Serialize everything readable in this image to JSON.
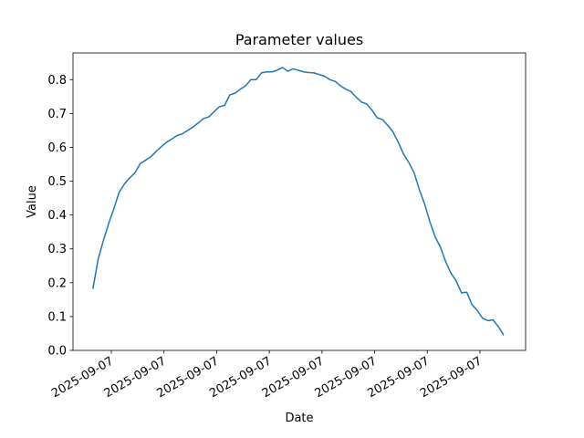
{
  "chart_data": {
    "type": "line",
    "title": "Parameter values",
    "x_label": "Date",
    "y_label": "Value",
    "x": [
      6.5,
      7.5,
      8.5,
      9.5,
      10.5,
      11.5,
      12.5,
      13.5,
      14.5,
      15.5,
      16.5,
      17.5,
      18.5,
      19.5,
      20.5,
      21.5,
      22.5,
      23.5,
      24.5,
      25.5,
      26.5,
      27.5,
      28.5,
      29.5,
      30.5,
      31.5,
      32.5,
      33.5,
      34.5,
      35.5,
      36.5,
      37.5,
      38.5,
      39.5,
      40.5,
      41.5,
      42.5,
      43.5,
      44.5,
      45.5,
      46.5,
      47.5,
      48.5,
      49.5,
      50.5,
      51.5,
      52.5,
      53.5,
      54.5,
      55.5,
      56.5,
      57.5,
      58.5,
      59.5,
      60.5,
      61.5,
      62.5,
      63.5,
      64.5,
      65.5,
      66.5,
      67.5,
      68.5,
      69.5,
      70.5,
      71.5,
      72.5,
      73.5,
      74.5,
      75.5,
      76.5,
      77.5,
      78.5,
      79.5,
      80.5,
      81.5,
      82.5,
      83.5,
      84.5
    ],
    "series": [
      {
        "color": "#1f77b4",
        "values": [
          0.182,
          0.27,
          0.325,
          0.375,
          0.42,
          0.468,
          0.492,
          0.51,
          0.525,
          0.552,
          0.562,
          0.572,
          0.588,
          0.602,
          0.615,
          0.625,
          0.635,
          0.64,
          0.65,
          0.66,
          0.672,
          0.685,
          0.69,
          0.705,
          0.72,
          0.724,
          0.755,
          0.76,
          0.772,
          0.782,
          0.8,
          0.8,
          0.82,
          0.823,
          0.823,
          0.828,
          0.836,
          0.825,
          0.832,
          0.828,
          0.823,
          0.821,
          0.82,
          0.815,
          0.81,
          0.8,
          0.795,
          0.782,
          0.772,
          0.765,
          0.748,
          0.734,
          0.728,
          0.71,
          0.687,
          0.682,
          0.665,
          0.645,
          0.615,
          0.58,
          0.555,
          0.525,
          0.475,
          0.432,
          0.38,
          0.335,
          0.305,
          0.262,
          0.228,
          0.205,
          0.17,
          0.172,
          0.135,
          0.118,
          0.095,
          0.088,
          0.09,
          0.07,
          0.045
        ]
      }
    ],
    "xlim": [
      2.72,
      88.67
    ],
    "xticks": [
      {
        "value": 10,
        "label": "2025-09-07"
      },
      {
        "value": 20,
        "label": "2025-09-07"
      },
      {
        "value": 30,
        "label": "2025-09-07"
      },
      {
        "value": 40,
        "label": "2025-09-07"
      },
      {
        "value": 50,
        "label": "2025-09-07"
      },
      {
        "value": 60,
        "label": "2025-09-07"
      },
      {
        "value": 70,
        "label": "2025-09-07"
      },
      {
        "value": 80,
        "label": "2025-09-07"
      }
    ],
    "ylim": [
      0,
      0.879
    ],
    "yticks": [
      {
        "value": 0,
        "label": "0.0"
      },
      0.1,
      0.2,
      0.3,
      0.4,
      0.5,
      0.6,
      0.7,
      0.8
    ],
    "grid": false
  }
}
